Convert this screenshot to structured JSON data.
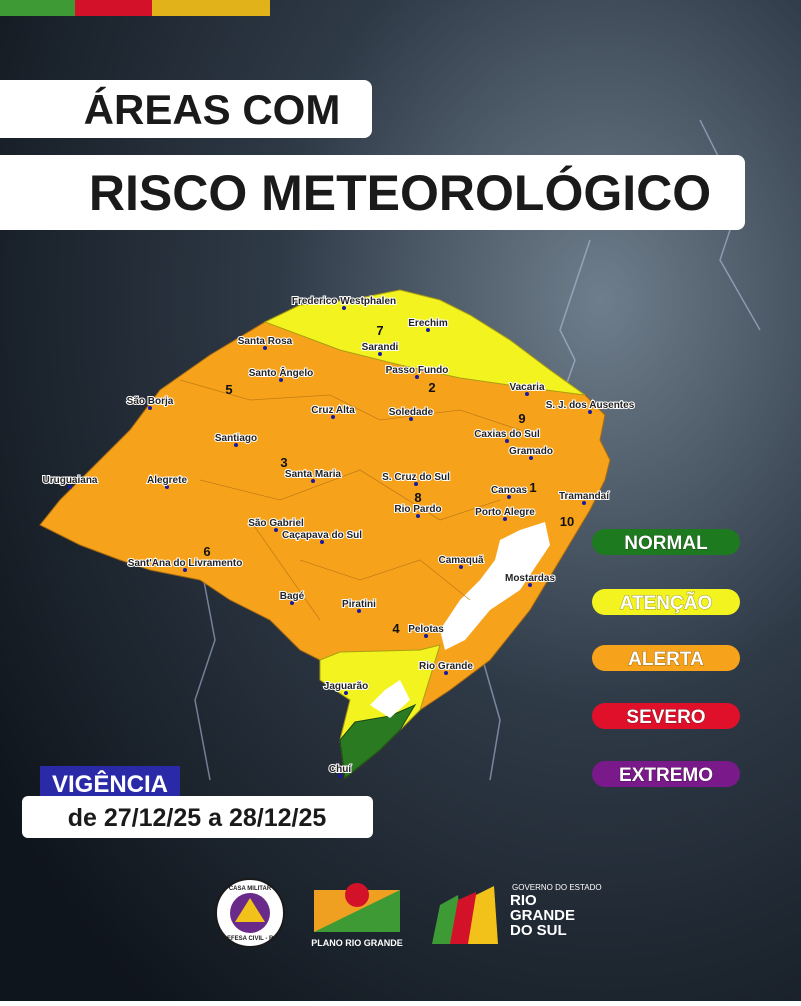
{
  "header": {
    "title_line1": "ÁREAS COM",
    "title_line2": "RISCO METEOROLÓGICO"
  },
  "map": {
    "cities": [
      "Frederico Westphalen",
      "Erechim",
      "Sarandi",
      "Santa Rosa",
      "Passo Fundo",
      "Santo Ângelo",
      "Vacaria",
      "São Borja",
      "Cruz Alta",
      "Soledade",
      "S. J. dos Ausentes",
      "Santiago",
      "Caxias do Sul",
      "Gramado",
      "Uruguaiana",
      "Alegrete",
      "Santa Maria",
      "S. Cruz do Sul",
      "Canoas",
      "Tramandaí",
      "Rio Pardo",
      "Porto Alegre",
      "São Gabriel",
      "Caçapava do Sul",
      "Sant'Ana do Livramento",
      "Camaquã",
      "Mostardas",
      "Bagé",
      "Piratini",
      "Pelotas",
      "Rio Grande",
      "Jaguarão",
      "Chuí"
    ],
    "regions": [
      "7",
      "2",
      "5",
      "9",
      "3",
      "8",
      "1",
      "10",
      "6",
      "4"
    ]
  },
  "legend": [
    "NORMAL",
    "ATENÇÃO",
    "ALERTA",
    "SEVERO",
    "EXTREMO"
  ],
  "validity": {
    "label": "VIGÊNCIA",
    "dates": "de 27/12/25 a 28/12/25"
  },
  "footer": {
    "logo1_top": "CASA MILITAR",
    "logo1_bottom": "DEFESA CIVIL - RS",
    "logo2": "PLANO RIO GRANDE",
    "logo3_small": "GOVERNO DO ESTADO",
    "logo3_big": "RIO GRANDE DO SUL"
  }
}
